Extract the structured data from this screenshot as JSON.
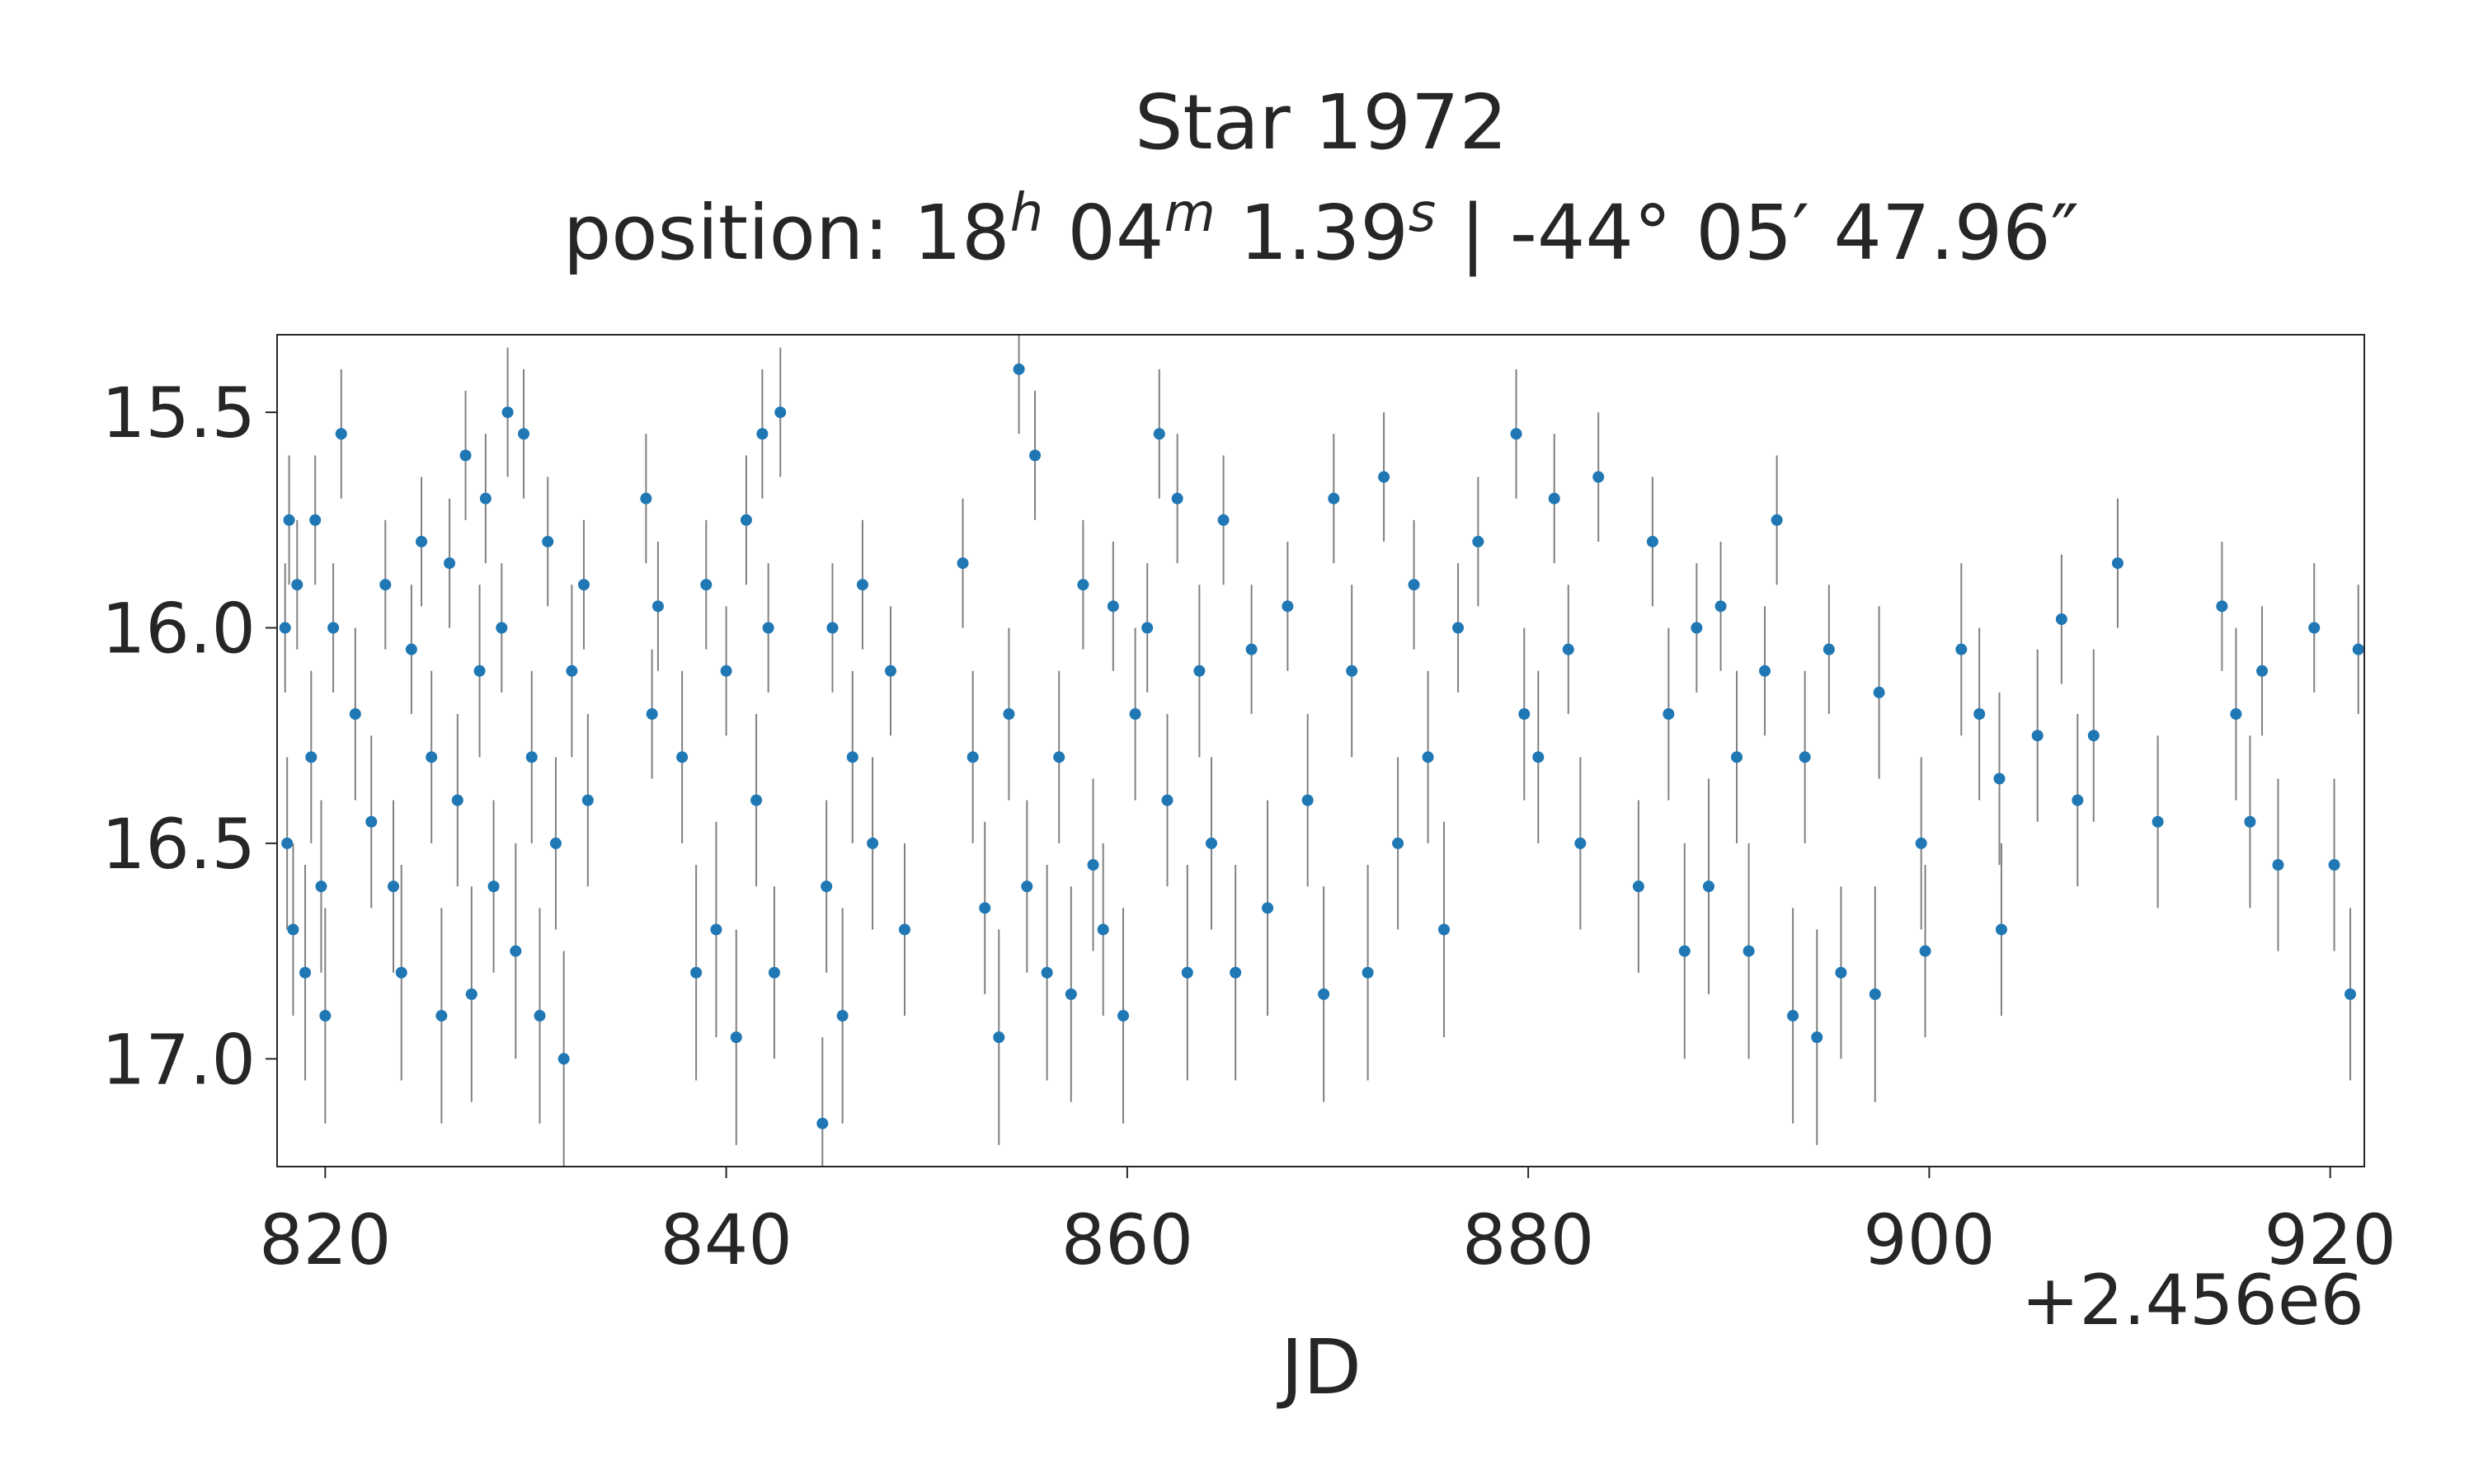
{
  "chart_data": {
    "type": "scatter",
    "title": "Star 1972",
    "subtitle": [
      "position: 18",
      "h",
      " 04",
      "m",
      " 1.39",
      "s",
      " | -44° 05′ 47.96″"
    ],
    "xlabel": "JD",
    "x_offset_label": "+2.456e6",
    "xlim": [
      817.6,
      921.7
    ],
    "ylim": [
      17.25,
      15.32
    ],
    "xticks": [
      820,
      840,
      860,
      880,
      900,
      920
    ],
    "yticks": [
      15.5,
      {
        "value": 16,
        "label": "16.0"
      },
      16.5,
      {
        "value": 17,
        "label": "17.0"
      }
    ],
    "grid": false,
    "color": "#1f77b4",
    "error_color": "#808080",
    "x": [
      818.0,
      818.1,
      818.2,
      818.4,
      818.6,
      819.0,
      819.3,
      819.5,
      819.8,
      820.0,
      820.4,
      820.8,
      821.5,
      822.3,
      823.0,
      823.4,
      823.8,
      824.3,
      824.8,
      825.3,
      825.8,
      826.2,
      826.6,
      827.0,
      827.3,
      827.7,
      828.0,
      828.4,
      828.8,
      829.1,
      829.5,
      829.9,
      830.3,
      830.7,
      831.1,
      831.5,
      831.9,
      832.3,
      832.9,
      833.1,
      836.0,
      836.3,
      836.6,
      837.8,
      838.5,
      839.0,
      839.5,
      840.0,
      840.5,
      841.0,
      841.5,
      841.8,
      842.1,
      842.4,
      842.7,
      844.8,
      845.0,
      845.3,
      845.8,
      846.3,
      846.8,
      847.3,
      848.2,
      848.9,
      851.8,
      852.3,
      852.9,
      853.6,
      854.1,
      854.6,
      855.0,
      855.4,
      856.0,
      856.6,
      857.2,
      857.8,
      858.3,
      858.8,
      859.3,
      859.8,
      860.4,
      861.0,
      861.6,
      862.0,
      862.5,
      863.0,
      863.6,
      864.2,
      864.8,
      865.4,
      866.2,
      867.0,
      868.0,
      869.0,
      869.8,
      870.3,
      871.2,
      872.0,
      872.8,
      873.5,
      874.3,
      875.0,
      875.8,
      876.5,
      877.5,
      879.4,
      879.8,
      880.5,
      881.3,
      882.0,
      882.6,
      883.5,
      885.5,
      886.2,
      887.0,
      887.8,
      888.4,
      889.0,
      889.6,
      890.4,
      891.0,
      891.8,
      892.4,
      893.2,
      893.8,
      894.4,
      895.0,
      895.6,
      897.3,
      897.5,
      899.6,
      899.8,
      901.6,
      902.5,
      903.6,
      903.5,
      905.4,
      906.6,
      907.4,
      908.2,
      909.4,
      911.4,
      914.6,
      915.3,
      916.0,
      916.6,
      917.4,
      919.2,
      920.2,
      921.0,
      921.4
    ],
    "values": [
      16.0,
      16.5,
      15.75,
      16.7,
      15.9,
      16.8,
      16.3,
      15.75,
      16.6,
      16.9,
      16.0,
      15.55,
      16.2,
      16.45,
      15.9,
      16.6,
      16.8,
      16.05,
      15.8,
      16.3,
      16.9,
      15.85,
      16.4,
      15.6,
      16.85,
      16.1,
      15.7,
      16.6,
      16.0,
      15.5,
      16.75,
      15.55,
      16.3,
      16.9,
      15.8,
      16.5,
      17.0,
      16.1,
      15.9,
      16.4,
      15.7,
      16.2,
      15.95,
      16.3,
      16.8,
      15.9,
      16.7,
      16.1,
      16.95,
      15.75,
      16.4,
      15.55,
      16.0,
      16.8,
      15.5,
      17.15,
      16.6,
      16.0,
      16.9,
      16.3,
      15.9,
      16.5,
      16.1,
      16.7,
      15.85,
      16.3,
      16.65,
      16.95,
      16.2,
      15.4,
      16.6,
      15.6,
      16.8,
      16.3,
      16.85,
      15.9,
      16.55,
      16.7,
      15.95,
      16.9,
      16.2,
      16.0,
      15.55,
      16.4,
      15.7,
      16.8,
      16.1,
      16.5,
      15.75,
      16.8,
      16.05,
      16.65,
      15.95,
      16.4,
      16.85,
      15.7,
      16.1,
      16.8,
      15.65,
      16.5,
      15.9,
      16.3,
      16.7,
      16.0,
      15.8,
      15.55,
      16.2,
      16.3,
      15.7,
      16.05,
      16.5,
      15.65,
      16.6,
      15.8,
      16.2,
      16.75,
      16.0,
      16.6,
      15.95,
      16.3,
      16.75,
      16.1,
      15.75,
      16.9,
      16.3,
      16.95,
      16.05,
      16.8,
      16.85,
      16.15,
      16.5,
      16.75,
      16.05,
      16.2,
      16.7,
      16.35,
      16.25,
      15.98,
      16.4,
      16.25,
      15.85,
      16.45,
      15.95,
      16.2,
      16.45,
      16.1,
      16.55,
      16.0,
      16.55,
      16.85,
      16.05
    ],
    "errors": [
      0.15,
      0.2,
      0.15,
      0.2,
      0.15,
      0.25,
      0.2,
      0.15,
      0.2,
      0.25,
      0.15,
      0.15,
      0.2,
      0.2,
      0.15,
      0.2,
      0.25,
      0.15,
      0.15,
      0.2,
      0.25,
      0.15,
      0.2,
      0.15,
      0.25,
      0.2,
      0.15,
      0.2,
      0.15,
      0.15,
      0.25,
      0.15,
      0.2,
      0.25,
      0.15,
      0.2,
      0.25,
      0.2,
      0.15,
      0.2,
      0.15,
      0.15,
      0.15,
      0.2,
      0.25,
      0.15,
      0.25,
      0.15,
      0.25,
      0.15,
      0.2,
      0.15,
      0.15,
      0.2,
      0.15,
      0.2,
      0.2,
      0.15,
      0.25,
      0.2,
      0.15,
      0.2,
      0.15,
      0.2,
      0.15,
      0.2,
      0.2,
      0.25,
      0.2,
      0.15,
      0.2,
      0.15,
      0.25,
      0.2,
      0.25,
      0.15,
      0.2,
      0.2,
      0.15,
      0.25,
      0.2,
      0.15,
      0.15,
      0.2,
      0.15,
      0.25,
      0.2,
      0.2,
      0.15,
      0.25,
      0.15,
      0.25,
      0.15,
      0.2,
      0.25,
      0.15,
      0.2,
      0.25,
      0.15,
      0.2,
      0.15,
      0.2,
      0.25,
      0.15,
      0.15,
      0.15,
      0.2,
      0.2,
      0.15,
      0.15,
      0.2,
      0.15,
      0.2,
      0.15,
      0.2,
      0.25,
      0.15,
      0.25,
      0.15,
      0.2,
      0.25,
      0.15,
      0.15,
      0.25,
      0.2,
      0.25,
      0.15,
      0.2,
      0.25,
      0.2,
      0.2,
      0.2,
      0.2,
      0.2,
      0.2,
      0.2,
      0.2,
      0.15,
      0.2,
      0.2,
      0.15,
      0.2,
      0.15,
      0.2,
      0.2,
      0.15,
      0.2,
      0.15,
      0.2,
      0.2,
      0.15
    ]
  }
}
